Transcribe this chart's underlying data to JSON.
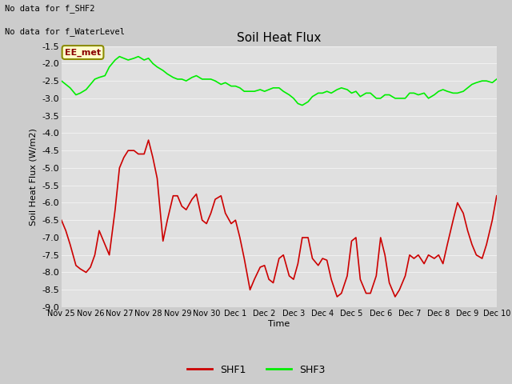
{
  "title": "Soil Heat Flux",
  "ylabel": "Soil Heat Flux (W/m2)",
  "xlabel": "Time",
  "ylim": [
    -9.0,
    -1.5
  ],
  "yticks": [
    -9.0,
    -8.5,
    -8.0,
    -7.5,
    -7.0,
    -6.5,
    -6.0,
    -5.5,
    -5.0,
    -4.5,
    -4.0,
    -3.5,
    -3.0,
    -2.5,
    -2.0,
    -1.5
  ],
  "plot_bg_color": "#e0e0e0",
  "fig_bg_color": "#cccccc",
  "grid_color": "#f0f0f0",
  "note_lines": [
    "No data for f_SHF2",
    "No data for f_WaterLevel"
  ],
  "annotation_box": "EE_met",
  "annotation_box_bg": "#ffffcc",
  "annotation_box_border": "#8b8b00",
  "x_tick_labels": [
    "Nov 25",
    "Nov 26",
    "Nov 27",
    "Nov 28",
    "Nov 29",
    "Nov 30",
    "Dec 1",
    "Dec 2",
    "Dec 3",
    "Dec 4",
    "Dec 5",
    "Dec 6",
    "Dec 7",
    "Dec 8",
    "Dec 9",
    "Dec 10"
  ],
  "shf1_color": "#cc0000",
  "shf3_color": "#00ee00",
  "shf1_x": [
    0.0,
    0.15,
    0.3,
    0.5,
    0.65,
    0.85,
    1.0,
    1.15,
    1.3,
    1.5,
    1.65,
    1.85,
    2.0,
    2.15,
    2.3,
    2.5,
    2.65,
    2.85,
    3.0,
    3.15,
    3.3,
    3.5,
    3.65,
    3.85,
    4.0,
    4.15,
    4.3,
    4.5,
    4.65,
    4.85,
    5.0,
    5.15,
    5.3,
    5.5,
    5.65,
    5.85,
    6.0,
    6.15,
    6.3,
    6.5,
    6.65,
    6.85,
    7.0,
    7.15,
    7.3,
    7.5,
    7.65,
    7.85,
    8.0,
    8.15,
    8.3,
    8.5,
    8.65,
    8.85,
    9.0,
    9.15,
    9.3,
    9.5,
    9.65,
    9.85,
    10.0,
    10.15,
    10.3,
    10.5,
    10.65,
    10.85,
    11.0,
    11.15,
    11.3,
    11.5,
    11.65,
    11.85,
    12.0,
    12.15,
    12.3,
    12.5,
    12.65,
    12.85,
    13.0,
    13.15,
    13.3,
    13.5,
    13.65,
    13.85,
    14.0,
    14.15,
    14.3,
    14.5,
    14.65,
    14.85,
    15.0
  ],
  "shf1_y": [
    -6.5,
    -6.8,
    -7.2,
    -7.8,
    -7.9,
    -8.0,
    -7.85,
    -7.5,
    -6.8,
    -7.2,
    -7.5,
    -6.2,
    -5.0,
    -4.7,
    -4.5,
    -4.5,
    -4.6,
    -4.6,
    -4.2,
    -4.7,
    -5.3,
    -7.1,
    -6.5,
    -5.8,
    -5.8,
    -6.1,
    -6.2,
    -5.9,
    -5.75,
    -6.5,
    -6.6,
    -6.3,
    -5.9,
    -5.8,
    -6.3,
    -6.6,
    -6.5,
    -7.0,
    -7.6,
    -8.5,
    -8.2,
    -7.85,
    -7.8,
    -8.2,
    -8.3,
    -7.6,
    -7.5,
    -8.1,
    -8.2,
    -7.75,
    -7.0,
    -7.0,
    -7.6,
    -7.8,
    -7.6,
    -7.65,
    -8.2,
    -8.7,
    -8.6,
    -8.1,
    -7.1,
    -7.0,
    -8.2,
    -8.6,
    -8.6,
    -8.1,
    -7.0,
    -7.5,
    -8.3,
    -8.7,
    -8.5,
    -8.1,
    -7.5,
    -7.6,
    -7.5,
    -7.75,
    -7.5,
    -7.6,
    -7.5,
    -7.75,
    -7.2,
    -6.5,
    -6.0,
    -6.3,
    -6.8,
    -7.2,
    -7.5,
    -7.6,
    -7.2,
    -6.5,
    -5.8
  ],
  "shf3_x": [
    0.0,
    0.15,
    0.3,
    0.5,
    0.65,
    0.85,
    1.0,
    1.15,
    1.3,
    1.5,
    1.65,
    1.85,
    2.0,
    2.15,
    2.3,
    2.5,
    2.65,
    2.85,
    3.0,
    3.15,
    3.3,
    3.5,
    3.65,
    3.85,
    4.0,
    4.15,
    4.3,
    4.5,
    4.65,
    4.85,
    5.0,
    5.15,
    5.3,
    5.5,
    5.65,
    5.85,
    6.0,
    6.15,
    6.3,
    6.5,
    6.65,
    6.85,
    7.0,
    7.15,
    7.3,
    7.5,
    7.65,
    7.85,
    8.0,
    8.15,
    8.3,
    8.5,
    8.65,
    8.85,
    9.0,
    9.15,
    9.3,
    9.5,
    9.65,
    9.85,
    10.0,
    10.15,
    10.3,
    10.5,
    10.65,
    10.85,
    11.0,
    11.15,
    11.3,
    11.5,
    11.65,
    11.85,
    12.0,
    12.15,
    12.3,
    12.5,
    12.65,
    12.85,
    13.0,
    13.15,
    13.3,
    13.5,
    13.65,
    13.85,
    14.0,
    14.15,
    14.3,
    14.5,
    14.65,
    14.85,
    15.0
  ],
  "shf3_y": [
    -2.5,
    -2.6,
    -2.7,
    -2.9,
    -2.85,
    -2.75,
    -2.6,
    -2.45,
    -2.4,
    -2.35,
    -2.1,
    -1.9,
    -1.8,
    -1.85,
    -1.9,
    -1.85,
    -1.8,
    -1.9,
    -1.85,
    -2.0,
    -2.1,
    -2.2,
    -2.3,
    -2.4,
    -2.45,
    -2.45,
    -2.5,
    -2.4,
    -2.35,
    -2.45,
    -2.45,
    -2.45,
    -2.5,
    -2.6,
    -2.55,
    -2.65,
    -2.65,
    -2.7,
    -2.8,
    -2.8,
    -2.8,
    -2.75,
    -2.8,
    -2.75,
    -2.7,
    -2.7,
    -2.8,
    -2.9,
    -3.0,
    -3.15,
    -3.2,
    -3.1,
    -2.95,
    -2.85,
    -2.85,
    -2.8,
    -2.85,
    -2.75,
    -2.7,
    -2.75,
    -2.85,
    -2.8,
    -2.95,
    -2.85,
    -2.85,
    -3.0,
    -3.0,
    -2.9,
    -2.9,
    -3.0,
    -3.0,
    -3.0,
    -2.85,
    -2.85,
    -2.9,
    -2.85,
    -3.0,
    -2.9,
    -2.8,
    -2.75,
    -2.8,
    -2.85,
    -2.85,
    -2.8,
    -2.7,
    -2.6,
    -2.55,
    -2.5,
    -2.5,
    -2.55,
    -2.45
  ]
}
